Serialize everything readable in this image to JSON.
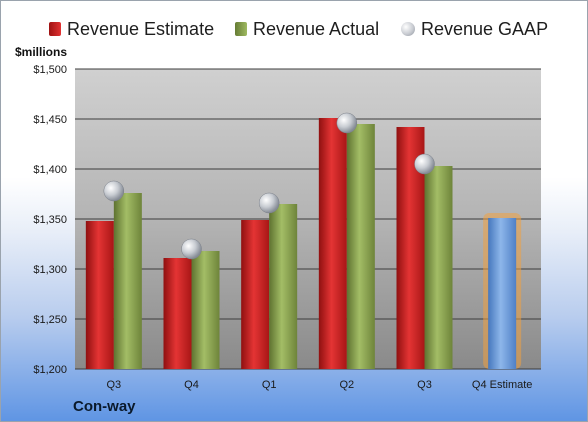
{
  "chart_data": {
    "type": "bar",
    "title": "",
    "ylabel": "$millions",
    "xlabel": "",
    "ylim": [
      1200,
      1500
    ],
    "yticks": [
      1200,
      1250,
      1300,
      1350,
      1400,
      1450,
      1500
    ],
    "ytick_labels": [
      "$1,200",
      "$1,250",
      "$1,300",
      "$1,350",
      "$1,400",
      "$1,450",
      "$1,500"
    ],
    "categories": [
      "Q3",
      "Q4",
      "Q1",
      "Q2",
      "Q3",
      "Q4 Estimate"
    ],
    "series": [
      {
        "name": "Revenue Estimate",
        "kind": "bar",
        "color": "#d92020",
        "values": [
          1348,
          1311,
          1349,
          1451,
          1442,
          null
        ]
      },
      {
        "name": "Revenue Actual",
        "kind": "bar",
        "color": "#8ea854",
        "values": [
          1376,
          1318,
          1365,
          1445,
          1403,
          null
        ]
      },
      {
        "name": "Revenue GAAP",
        "kind": "scatter",
        "color": "#c9ccd2",
        "values": [
          1378,
          1320,
          1366,
          1446,
          1405,
          null
        ]
      },
      {
        "name": "",
        "kind": "bar",
        "color": "#6f9fdc",
        "values": [
          null,
          null,
          null,
          null,
          null,
          1351
        ]
      }
    ],
    "legend_position": "top",
    "grid": true
  },
  "company": "Con-way"
}
